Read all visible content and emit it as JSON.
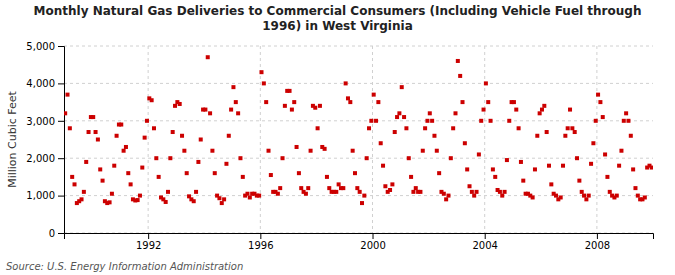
{
  "chart_data": {
    "type": "scatter",
    "title": "Monthly Natural Gas Deliveries to Commercial Consumers (Including Vehicle Fuel through\n1996) in West Virginia",
    "ylabel": "Million Cubic Feet",
    "source": "Source: U.S. Energy Information Administration",
    "color": "#cc0000",
    "marker": "square",
    "grid": true,
    "xlim": [
      1989.0,
      2010.0
    ],
    "xticks": [
      1992,
      1996,
      2000,
      2004,
      2008
    ],
    "ylim": [
      0,
      5000
    ],
    "yticks": [
      0,
      {
        "value": 1000,
        "label": "1,000"
      },
      {
        "value": 2000,
        "label": "2,000"
      },
      {
        "value": 3000,
        "label": "3,000"
      },
      {
        "value": 4000,
        "label": "4,000"
      },
      {
        "value": 5000,
        "label": "5,000"
      }
    ],
    "x": [
      1989.0416666666667,
      1989.125,
      1989.2083333333333,
      1989.2916666666667,
      1989.375,
      1989.4583333333333,
      1989.5416666666667,
      1989.625,
      1989.7083333333333,
      1989.7916666666667,
      1989.875,
      1989.9583333333333,
      1990.0416666666667,
      1990.125,
      1990.2083333333333,
      1990.2916666666667,
      1990.375,
      1990.4583333333333,
      1990.5416666666667,
      1990.625,
      1990.7083333333333,
      1990.7916666666667,
      1990.875,
      1990.9583333333333,
      1991.0416666666667,
      1991.125,
      1991.2083333333333,
      1991.2916666666667,
      1991.375,
      1991.4583333333333,
      1991.5416666666667,
      1991.625,
      1991.7083333333333,
      1991.7916666666667,
      1991.875,
      1991.9583333333333,
      1992.0416666666667,
      1992.125,
      1992.2083333333333,
      1992.2916666666667,
      1992.375,
      1992.4583333333333,
      1992.5416666666667,
      1992.625,
      1992.7083333333333,
      1992.7916666666667,
      1992.875,
      1992.9583333333333,
      1993.0416666666667,
      1993.125,
      1993.2083333333333,
      1993.2916666666667,
      1993.375,
      1993.4583333333333,
      1993.5416666666667,
      1993.625,
      1993.7083333333333,
      1993.7916666666667,
      1993.875,
      1993.9583333333333,
      1994.0416666666667,
      1994.125,
      1994.2083333333333,
      1994.2916666666667,
      1994.375,
      1994.4583333333333,
      1994.5416666666667,
      1994.625,
      1994.7083333333333,
      1994.7916666666667,
      1994.875,
      1994.9583333333333,
      1995.0416666666667,
      1995.125,
      1995.2083333333333,
      1995.2916666666667,
      1995.375,
      1995.4583333333333,
      1995.5416666666667,
      1995.625,
      1995.7083333333333,
      1995.7916666666667,
      1995.875,
      1995.9583333333333,
      1996.0416666666667,
      1996.125,
      1996.2083333333333,
      1996.2916666666667,
      1996.375,
      1996.4583333333333,
      1996.5416666666667,
      1996.625,
      1996.7083333333333,
      1996.7916666666667,
      1996.875,
      1996.9583333333333,
      1997.0416666666667,
      1997.125,
      1997.2083333333333,
      1997.2916666666667,
      1997.375,
      1997.4583333333333,
      1997.5416666666667,
      1997.625,
      1997.7083333333333,
      1997.7916666666667,
      1997.875,
      1997.9583333333333,
      1998.0416666666667,
      1998.125,
      1998.2083333333333,
      1998.2916666666667,
      1998.375,
      1998.4583333333333,
      1998.5416666666667,
      1998.625,
      1998.7083333333333,
      1998.7916666666667,
      1998.875,
      1998.9583333333333,
      1999.0416666666667,
      1999.125,
      1999.2083333333333,
      1999.2916666666667,
      1999.375,
      1999.4583333333333,
      1999.5416666666667,
      1999.625,
      1999.7083333333333,
      1999.7916666666667,
      1999.875,
      1999.9583333333333,
      2000.0416666666667,
      2000.125,
      2000.2083333333333,
      2000.2916666666667,
      2000.375,
      2000.4583333333333,
      2000.5416666666667,
      2000.625,
      2000.7083333333333,
      2000.7916666666667,
      2000.875,
      2000.9583333333333,
      2001.0416666666667,
      2001.125,
      2001.2083333333333,
      2001.2916666666667,
      2001.375,
      2001.4583333333333,
      2001.5416666666667,
      2001.625,
      2001.7083333333333,
      2001.7916666666667,
      2001.875,
      2001.9583333333333,
      2002.0416666666667,
      2002.125,
      2002.2083333333333,
      2002.2916666666667,
      2002.375,
      2002.4583333333333,
      2002.5416666666667,
      2002.625,
      2002.7083333333333,
      2002.7916666666667,
      2002.875,
      2002.9583333333333,
      2003.0416666666667,
      2003.125,
      2003.2083333333333,
      2003.2916666666667,
      2003.375,
      2003.4583333333333,
      2003.5416666666667,
      2003.625,
      2003.7083333333333,
      2003.7916666666667,
      2003.875,
      2003.9583333333333,
      2004.0416666666667,
      2004.125,
      2004.2083333333333,
      2004.2916666666667,
      2004.375,
      2004.4583333333333,
      2004.5416666666667,
      2004.625,
      2004.7083333333333,
      2004.7916666666667,
      2004.875,
      2004.9583333333333,
      2005.0416666666667,
      2005.125,
      2005.2083333333333,
      2005.2916666666667,
      2005.375,
      2005.4583333333333,
      2005.5416666666667,
      2005.625,
      2005.7083333333333,
      2005.7916666666667,
      2005.875,
      2005.9583333333333,
      2006.0416666666667,
      2006.125,
      2006.2083333333333,
      2006.2916666666667,
      2006.375,
      2006.4583333333333,
      2006.5416666666667,
      2006.625,
      2006.7083333333333,
      2006.7916666666667,
      2006.875,
      2006.9583333333333,
      2007.0416666666667,
      2007.125,
      2007.2083333333333,
      2007.2916666666667,
      2007.375,
      2007.4583333333333,
      2007.5416666666667,
      2007.625,
      2007.7083333333333,
      2007.7916666666667,
      2007.875,
      2007.9583333333333,
      2008.0416666666667,
      2008.125,
      2008.2083333333333,
      2008.2916666666667,
      2008.375,
      2008.4583333333333,
      2008.5416666666667,
      2008.625,
      2008.7083333333333,
      2008.7916666666667,
      2008.875,
      2008.9583333333333,
      2009.0416666666667,
      2009.125,
      2009.2083333333333,
      2009.2916666666667,
      2009.375,
      2009.4583333333333,
      2009.5416666666667,
      2009.625,
      2009.7083333333333,
      2009.7916666666667,
      2009.875,
      2009.9583333333333
    ],
    "values": [
      3200,
      3700,
      2800,
      1500,
      1300,
      800,
      850,
      900,
      1100,
      1900,
      2700,
      3100,
      3100,
      2700,
      2500,
      1700,
      1400,
      850,
      800,
      820,
      1050,
      1800,
      2600,
      2900,
      2900,
      2200,
      2300,
      1600,
      1300,
      900,
      870,
      880,
      1000,
      1750,
      2550,
      3000,
      3600,
      3550,
      2800,
      2000,
      1500,
      950,
      900,
      830,
      1100,
      2000,
      2700,
      3400,
      3500,
      3450,
      2600,
      2200,
      1600,
      980,
      900,
      850,
      1100,
      1900,
      2500,
      3300,
      3300,
      4700,
      3200,
      2200,
      1600,
      1000,
      930,
      800,
      900,
      1850,
      2600,
      3300,
      3900,
      3500,
      3200,
      2000,
      1500,
      1000,
      1050,
      950,
      1050,
      1050,
      1000,
      1000,
      4300,
      4000,
      3500,
      2200,
      1550,
      1100,
      1100,
      1050,
      1200,
      2000,
      3400,
      3800,
      3800,
      3300,
      3500,
      2300,
      1600,
      1200,
      1100,
      1050,
      1200,
      2200,
      3400,
      3350,
      2800,
      3400,
      2300,
      2250,
      1500,
      1200,
      1100,
      1100,
      1100,
      1300,
      1200,
      1200,
      4000,
      3600,
      3500,
      2200,
      1600,
      1200,
      1100,
      800,
      1000,
      2000,
      2800,
      3000,
      3700,
      3000,
      3500,
      2400,
      1800,
      1250,
      1100,
      1150,
      1300,
      2700,
      3100,
      3200,
      3900,
      3100,
      2800,
      2000,
      1500,
      1100,
      1200,
      1100,
      1100,
      2200,
      2800,
      3000,
      3200,
      3000,
      2600,
      2200,
      1600,
      1100,
      1050,
      900,
      1000,
      2000,
      2800,
      3200,
      4600,
      4200,
      3500,
      2400,
      1700,
      1250,
      1100,
      1000,
      1100,
      2100,
      3000,
      3300,
      4000,
      3500,
      3000,
      1700,
      1500,
      1150,
      1100,
      1000,
      1100,
      1950,
      3000,
      3500,
      3500,
      3300,
      2800,
      1900,
      1400,
      1050,
      1050,
      1000,
      950,
      1700,
      2600,
      3200,
      3300,
      3400,
      2700,
      1800,
      1300,
      1050,
      1000,
      900,
      950,
      1800,
      2600,
      2800,
      3300,
      2800,
      2700,
      2000,
      1400,
      1100,
      1000,
      900,
      1000,
      1850,
      2400,
      3000,
      3700,
      3500,
      3100,
      2100,
      1500,
      1100,
      1000,
      950,
      1000,
      1800,
      2200,
      3000,
      3200,
      3000,
      2600,
      1700,
      1200,
      1000,
      900,
      900,
      950,
      1750,
      1800,
      1750
    ]
  }
}
